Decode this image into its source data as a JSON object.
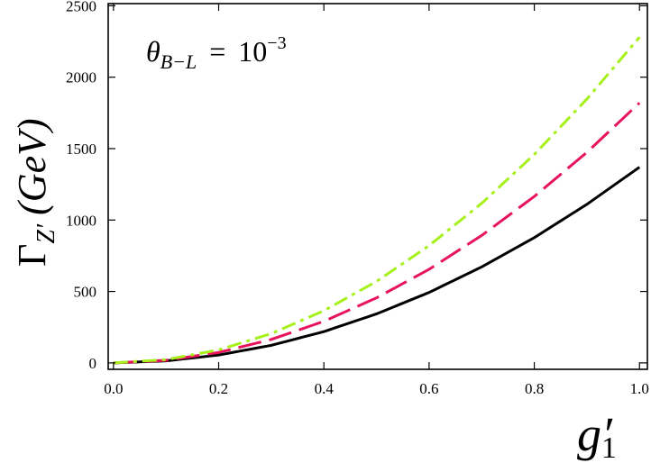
{
  "chart_data": {
    "type": "line",
    "xlabel": "g′",
    "xlabel_subscript": "1",
    "ylabel": "Γ",
    "ylabel_subscript": "Z′",
    "ylabel_unit": "(GeV)",
    "annotation": "θ",
    "annotation_subscript": "B−L",
    "annotation_equals": "=",
    "annotation_value_base": "10",
    "annotation_value_exp": "−3",
    "xlim": [
      -0.01,
      1.015
    ],
    "ylim": [
      -45,
      2515
    ],
    "xticks": [
      0.0,
      0.2,
      0.4,
      0.6,
      0.8,
      1.0
    ],
    "xtick_labels": [
      "0.0",
      "0.2",
      "0.4",
      "0.6",
      "0.8",
      "1.0"
    ],
    "yticks": [
      0,
      500,
      1000,
      1500,
      2000,
      2500
    ],
    "ytick_labels": [
      "0",
      "500",
      "1000",
      "1500",
      "2000",
      "2500"
    ],
    "grid": false,
    "series": [
      {
        "color": "#000000",
        "style": "solid",
        "x": [
          0.0,
          0.1,
          0.2,
          0.3,
          0.4,
          0.5,
          0.6,
          0.7,
          0.8,
          0.9,
          1.0
        ],
        "y": [
          0,
          14,
          55,
          123,
          219,
          343,
          493,
          672,
          877,
          1110,
          1370
        ]
      },
      {
        "color": "#e8135f",
        "style": "dashed",
        "x": [
          0.0,
          0.1,
          0.2,
          0.3,
          0.4,
          0.5,
          0.6,
          0.7,
          0.8,
          0.9,
          1.0
        ],
        "y": [
          0,
          18,
          73,
          164,
          291,
          455,
          655,
          892,
          1165,
          1474,
          1820
        ]
      },
      {
        "color": "#a6f01c",
        "style": "dashdot",
        "x": [
          0.0,
          0.1,
          0.2,
          0.3,
          0.4,
          0.5,
          0.6,
          0.7,
          0.8,
          0.9,
          1.0
        ],
        "y": [
          0,
          23,
          91,
          205,
          365,
          570,
          821,
          1117,
          1459,
          1847,
          2280
        ]
      }
    ]
  }
}
